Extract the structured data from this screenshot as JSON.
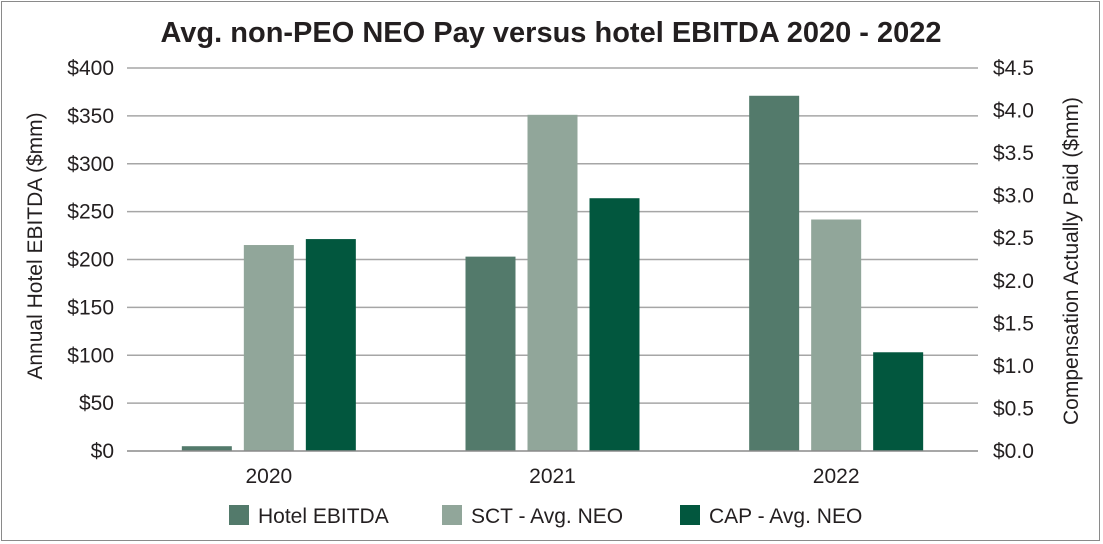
{
  "chart_data": {
    "type": "bar",
    "title": "Avg. non-PEO NEO Pay versus hotel EBITDA 2020 - 2022",
    "categories": [
      "2020",
      "2021",
      "2022"
    ],
    "ylabel": "Annual Hotel EBITDA ($mm)",
    "y2label": "Compensation Actually Paid ($mm)",
    "ylim": [
      0,
      400
    ],
    "y2lim": [
      0,
      4.5
    ],
    "yticks": [
      "$0",
      "$50",
      "$100",
      "$150",
      "$200",
      "$250",
      "$300",
      "$350",
      "$400"
    ],
    "y2ticks": [
      "$0.0",
      "$0.5",
      "$1.0",
      "$1.5",
      "$2.0",
      "$2.5",
      "$3.0",
      "$3.5",
      "$4.0",
      "$4.5"
    ],
    "grid": true,
    "legend_position": "bottom",
    "series": [
      {
        "name": "Hotel EBITDA",
        "axis": "left",
        "color": "#537a6b",
        "values": [
          5,
          203,
          371
        ]
      },
      {
        "name": "SCT - Avg. NEO",
        "axis": "right",
        "color": "#91a69a",
        "values": [
          2.42,
          3.95,
          2.72
        ]
      },
      {
        "name": "CAP - Avg. NEO",
        "axis": "right",
        "color": "#02573e",
        "values": [
          2.49,
          2.97,
          1.16
        ]
      }
    ]
  }
}
